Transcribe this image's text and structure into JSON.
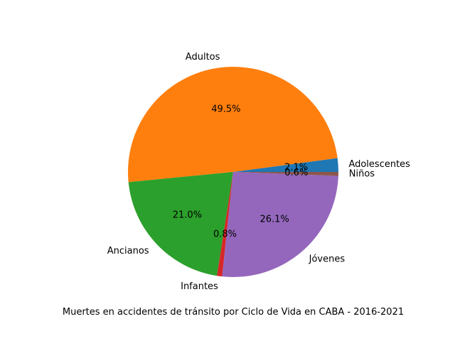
{
  "chart_data": {
    "type": "pie",
    "title": "",
    "xlabel": "Muertes en accidentes de tránsito por Ciclo de Vida en CABA - 2016-2021",
    "start_angle_deg": 0,
    "direction": "counterclockwise",
    "slices": [
      {
        "label": "Adolescentes",
        "value": 2.1,
        "pct_label": "2.1%",
        "color": "#1f77b4"
      },
      {
        "label": "Adultos",
        "value": 49.5,
        "pct_label": "49.5%",
        "color": "#ff7f0e"
      },
      {
        "label": "Ancianos",
        "value": 21.0,
        "pct_label": "21.0%",
        "color": "#2ca02c"
      },
      {
        "label": "Infantes",
        "value": 0.8,
        "pct_label": "0.8%",
        "color": "#d62728"
      },
      {
        "label": "Jóvenes",
        "value": 26.1,
        "pct_label": "26.1%",
        "color": "#9467bd"
      },
      {
        "label": "Niños",
        "value": 0.6,
        "pct_label": "0.6%",
        "color": "#8c564b"
      }
    ]
  }
}
